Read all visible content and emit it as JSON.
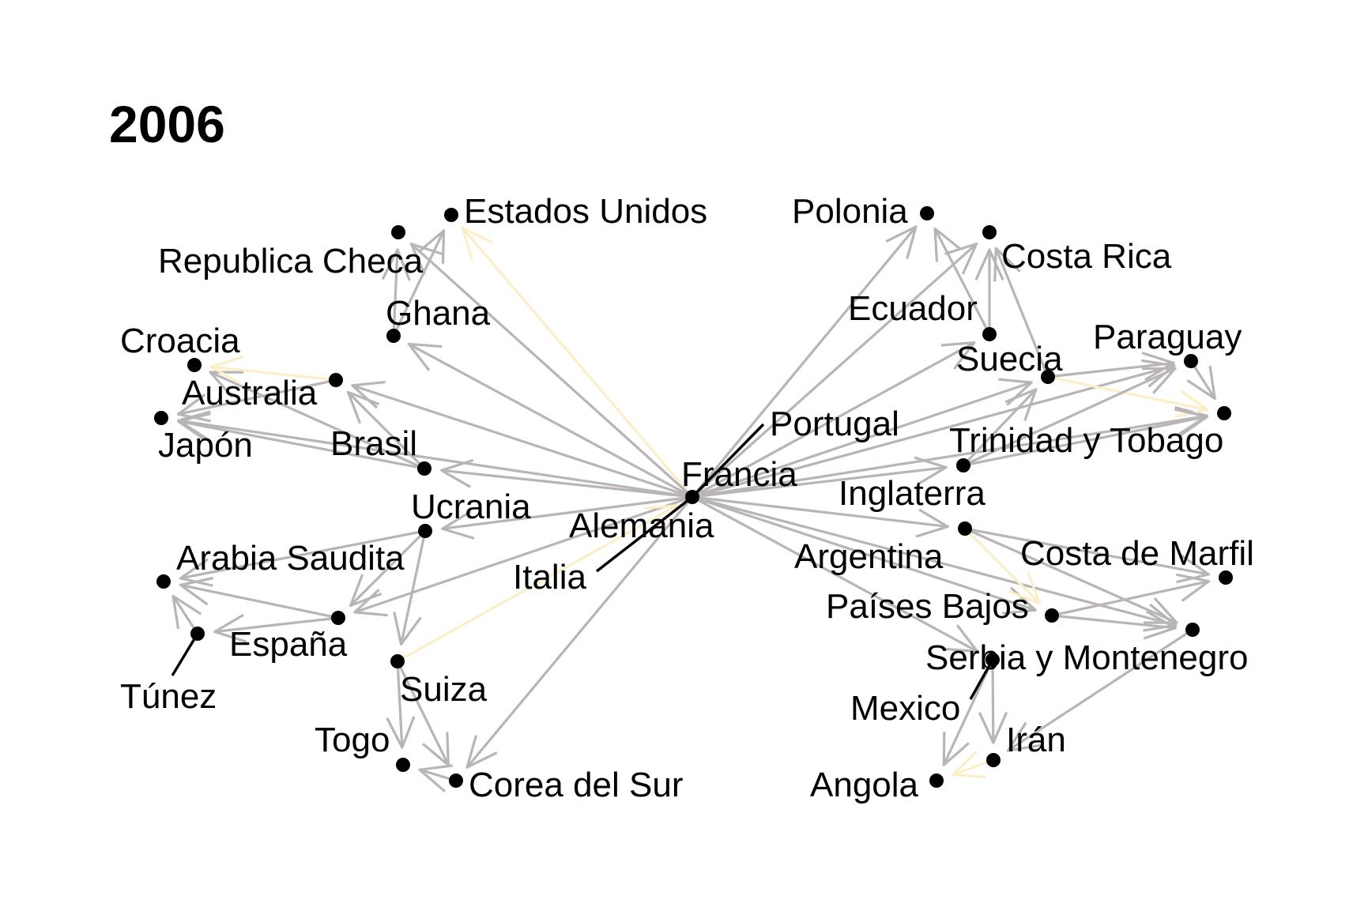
{
  "title": "2006",
  "colors": {
    "edge": "#b9b4b6",
    "highlight": "#fbeec8",
    "node": "#000000",
    "leader": "#000000"
  },
  "nodes": [
    {
      "id": "estados_unidos",
      "label": "Estados Unidos"
    },
    {
      "id": "republica_checa",
      "label": "Republica Checa"
    },
    {
      "id": "ghana",
      "label": "Ghana"
    },
    {
      "id": "croacia",
      "label": "Croacia"
    },
    {
      "id": "australia",
      "label": "Australia"
    },
    {
      "id": "japon",
      "label": "Japón"
    },
    {
      "id": "brasil",
      "label": "Brasil"
    },
    {
      "id": "ucrania",
      "label": "Ucrania"
    },
    {
      "id": "arabia_saudita",
      "label": "Arabia Saudita"
    },
    {
      "id": "espana",
      "label": "España"
    },
    {
      "id": "tunez",
      "label": "Túnez"
    },
    {
      "id": "suiza",
      "label": "Suiza"
    },
    {
      "id": "togo",
      "label": "Togo"
    },
    {
      "id": "corea_del_sur",
      "label": "Corea del Sur"
    },
    {
      "id": "italia",
      "label": "Italia"
    },
    {
      "id": "alemania",
      "label": "Alemania"
    },
    {
      "id": "francia",
      "label": "Francia"
    },
    {
      "id": "portugal",
      "label": "Portugal"
    },
    {
      "id": "polonia",
      "label": "Polonia"
    },
    {
      "id": "costa_rica",
      "label": "Costa Rica"
    },
    {
      "id": "ecuador",
      "label": "Ecuador"
    },
    {
      "id": "paraguay",
      "label": "Paraguay"
    },
    {
      "id": "suecia",
      "label": "Suecia"
    },
    {
      "id": "trinidad_y_tobago",
      "label": "Trinidad y Tobago"
    },
    {
      "id": "inglaterra",
      "label": "Inglaterra"
    },
    {
      "id": "argentina",
      "label": "Argentina"
    },
    {
      "id": "costa_de_marfil",
      "label": "Costa de Marfil"
    },
    {
      "id": "paises_bajos",
      "label": "Países Bajos"
    },
    {
      "id": "serbia_y_montenegro",
      "label": "Serbia y Montenegro"
    },
    {
      "id": "mexico",
      "label": "Mexico"
    },
    {
      "id": "iran",
      "label": "Irán"
    },
    {
      "id": "angola",
      "label": "Angola"
    }
  ],
  "edges": [
    {
      "from": "center",
      "to": "estados_unidos",
      "highlight": true
    },
    {
      "from": "center",
      "to": "republica_checa"
    },
    {
      "from": "center",
      "to": "ghana"
    },
    {
      "from": "center",
      "to": "australia"
    },
    {
      "from": "center",
      "to": "japon"
    },
    {
      "from": "center",
      "to": "brasil"
    },
    {
      "from": "center",
      "to": "ucrania"
    },
    {
      "from": "center",
      "to": "espana"
    },
    {
      "from": "center",
      "to": "corea_del_sur"
    },
    {
      "from": "center",
      "to": "polonia"
    },
    {
      "from": "center",
      "to": "costa_rica"
    },
    {
      "from": "center",
      "to": "ecuador"
    },
    {
      "from": "center",
      "to": "suecia"
    },
    {
      "from": "center",
      "to": "paraguay"
    },
    {
      "from": "center",
      "to": "trinidad_y_tobago"
    },
    {
      "from": "center",
      "to": "inglaterra"
    },
    {
      "from": "center",
      "to": "argentina"
    },
    {
      "from": "center",
      "to": "paises_bajos"
    },
    {
      "from": "center",
      "to": "serbia_y_montenegro"
    },
    {
      "from": "center",
      "to": "mexico"
    },
    {
      "from": "suiza",
      "to": "center",
      "highlight": true
    },
    {
      "from": "ghana",
      "to": "republica_checa"
    },
    {
      "from": "ghana",
      "to": "estados_unidos"
    },
    {
      "from": "brasil",
      "to": "croacia"
    },
    {
      "from": "brasil",
      "to": "japon"
    },
    {
      "from": "brasil",
      "to": "australia"
    },
    {
      "from": "australia",
      "to": "croacia",
      "highlight": true
    },
    {
      "from": "australia",
      "to": "japon"
    },
    {
      "from": "ucrania",
      "to": "arabia_saudita"
    },
    {
      "from": "ucrania",
      "to": "espana"
    },
    {
      "from": "ucrania",
      "to": "suiza"
    },
    {
      "from": "espana",
      "to": "arabia_saudita"
    },
    {
      "from": "espana",
      "to": "tunez"
    },
    {
      "from": "tunez",
      "to": "arabia_saudita"
    },
    {
      "from": "suiza",
      "to": "togo"
    },
    {
      "from": "suiza",
      "to": "corea_del_sur"
    },
    {
      "from": "corea_del_sur",
      "to": "togo"
    },
    {
      "from": "ecuador",
      "to": "costa_rica"
    },
    {
      "from": "ecuador",
      "to": "polonia"
    },
    {
      "from": "suecia",
      "to": "paraguay"
    },
    {
      "from": "suecia",
      "to": "trinidad_y_tobago",
      "highlight": true
    },
    {
      "from": "suecia",
      "to": "costa_rica"
    },
    {
      "from": "paraguay",
      "to": "trinidad_y_tobago"
    },
    {
      "from": "inglaterra",
      "to": "suecia"
    },
    {
      "from": "inglaterra",
      "to": "trinidad_y_tobago"
    },
    {
      "from": "inglaterra",
      "to": "paraguay"
    },
    {
      "from": "argentina",
      "to": "costa_de_marfil"
    },
    {
      "from": "argentina",
      "to": "serbia_y_montenegro"
    },
    {
      "from": "argentina",
      "to": "paises_bajos",
      "highlight": true
    },
    {
      "from": "paises_bajos",
      "to": "costa_de_marfil"
    },
    {
      "from": "paises_bajos",
      "to": "serbia_y_montenegro"
    },
    {
      "from": "serbia_y_montenegro",
      "to": "iran"
    },
    {
      "from": "mexico",
      "to": "iran"
    },
    {
      "from": "mexico",
      "to": "angola"
    },
    {
      "from": "iran",
      "to": "angola",
      "highlight": true
    }
  ]
}
